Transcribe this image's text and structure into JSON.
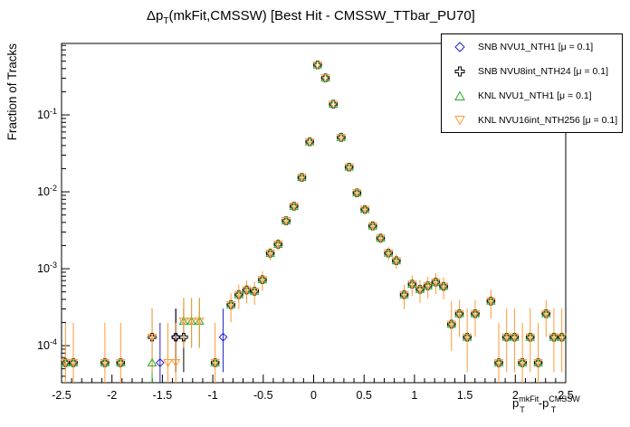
{
  "title": {
    "prefix": "Δp",
    "sub": "T",
    "suffix": "(mkFit,CMSSW) [Best Hit - CMSSW_TTbar_PU70]"
  },
  "axes": {
    "x": {
      "title_parts": {
        "p1": "p",
        "sup1": "mkFit",
        "sub1": "T",
        "mid": "-p",
        "sup2": "CMSSW",
        "sub2": "T"
      },
      "min": -2.5,
      "max": 2.5,
      "major_step": 0.5,
      "minor_step": 0.1,
      "tick_labels": [
        "-2.5",
        "-2",
        "-1.5",
        "-1",
        "-0.5",
        "0",
        "0.5",
        "1",
        "1.5",
        "2",
        "2.5"
      ]
    },
    "y": {
      "title": "Fraction of Tracks",
      "scale": "log",
      "min": 3.3e-05,
      "max": 0.85,
      "base": "10",
      "exponents": [
        "-1",
        "-2",
        "-3",
        "-4"
      ]
    }
  },
  "chart_data": {
    "type": "scatter",
    "title": "Δp_T(mkFit,CMSSW) [Best Hit - CMSSW_TTbar_PU70]",
    "xlabel": "p_T^mkFit - p_T^CMSSW",
    "ylabel": "Fraction of Tracks",
    "xlim": [
      -2.5,
      2.5
    ],
    "ylim": [
      3.3e-05,
      0.85
    ],
    "yscale": "log",
    "grid": false,
    "legend_position": "top-right",
    "bin_width": 0.078125,
    "single_track_fraction": 6e-05,
    "common_points": [
      [
        -2.461,
        6e-05
      ],
      [
        -2.383,
        6e-05
      ],
      [
        -2.07,
        6e-05
      ],
      [
        -1.914,
        6e-05
      ],
      [
        -0.977,
        6e-05
      ],
      [
        -0.82,
        0.00034
      ],
      [
        -0.742,
        0.00046
      ],
      [
        -0.664,
        0.00053
      ],
      [
        -0.586,
        0.00051
      ],
      [
        -0.508,
        0.00072
      ],
      [
        -0.43,
        0.00159
      ],
      [
        -0.352,
        0.00208
      ],
      [
        -0.273,
        0.0042
      ],
      [
        -0.195,
        0.0065
      ],
      [
        -0.117,
        0.0154
      ],
      [
        -0.039,
        0.0448
      ],
      [
        0.039,
        0.447
      ],
      [
        0.117,
        0.303
      ],
      [
        0.195,
        0.138
      ],
      [
        0.273,
        0.051
      ],
      [
        0.352,
        0.021
      ],
      [
        0.43,
        0.0097
      ],
      [
        0.508,
        0.0059
      ],
      [
        0.586,
        0.0036
      ],
      [
        0.664,
        0.0025
      ],
      [
        0.742,
        0.0016
      ],
      [
        0.82,
        0.00127
      ],
      [
        0.898,
        0.00046
      ],
      [
        0.977,
        0.00063
      ],
      [
        1.055,
        0.00054
      ],
      [
        1.133,
        0.0006
      ],
      [
        1.211,
        0.00067
      ],
      [
        1.289,
        0.00059
      ],
      [
        1.367,
        0.00019
      ],
      [
        1.445,
        0.00026
      ],
      [
        1.523,
        0.000129
      ],
      [
        1.602,
        0.00026
      ],
      [
        1.758,
        0.00038
      ],
      [
        1.836,
        6e-05
      ],
      [
        1.914,
        0.000129
      ],
      [
        1.992,
        0.000129
      ],
      [
        2.07,
        6e-05
      ],
      [
        2.148,
        0.000129
      ],
      [
        2.227,
        6e-05
      ],
      [
        2.305,
        0.00026
      ],
      [
        2.383,
        0.000129
      ],
      [
        2.461,
        0.000129
      ]
    ],
    "series": [
      {
        "name": "SNB NVU1_NTH1",
        "label": "SNB NVU1_NTH1 [μ = 0.1]",
        "marker": "open-diamond",
        "color": "#2222cc",
        "extra_points": [
          [
            -1.523,
            6e-05
          ],
          [
            -1.367,
            0.000129
          ],
          [
            -0.898,
            0.000129
          ]
        ]
      },
      {
        "name": "SNB NVU8int_NTH24",
        "label": "SNB NVU8int_NTH24 [μ = 0.1]",
        "marker": "open-cross",
        "color": "#000000",
        "extra_points": [
          [
            -1.602,
            0.000129
          ],
          [
            -1.367,
            0.000129
          ],
          [
            -1.289,
            0.000129
          ]
        ]
      },
      {
        "name": "KNL NVU1_NTH1",
        "label": "KNL NVU1_NTH1 [μ = 0.1]",
        "marker": "open-triangle-up",
        "color": "#22aa22",
        "extra_points": [
          [
            -1.602,
            6e-05
          ],
          [
            -1.289,
            0.000208
          ],
          [
            -1.211,
            0.000208
          ],
          [
            -1.133,
            0.000208
          ]
        ]
      },
      {
        "name": "KNL NVU16int_NTH256",
        "label": "KNL NVU16int_NTH256 [μ = 0.1]",
        "marker": "open-triangle-down",
        "color": "#ff9933",
        "extra_points": [
          [
            -1.602,
            0.000129
          ],
          [
            -1.445,
            6e-05
          ],
          [
            -1.367,
            6e-05
          ],
          [
            -1.289,
            0.000208
          ],
          [
            -1.211,
            0.000208
          ],
          [
            -1.133,
            0.000208
          ]
        ]
      }
    ]
  }
}
